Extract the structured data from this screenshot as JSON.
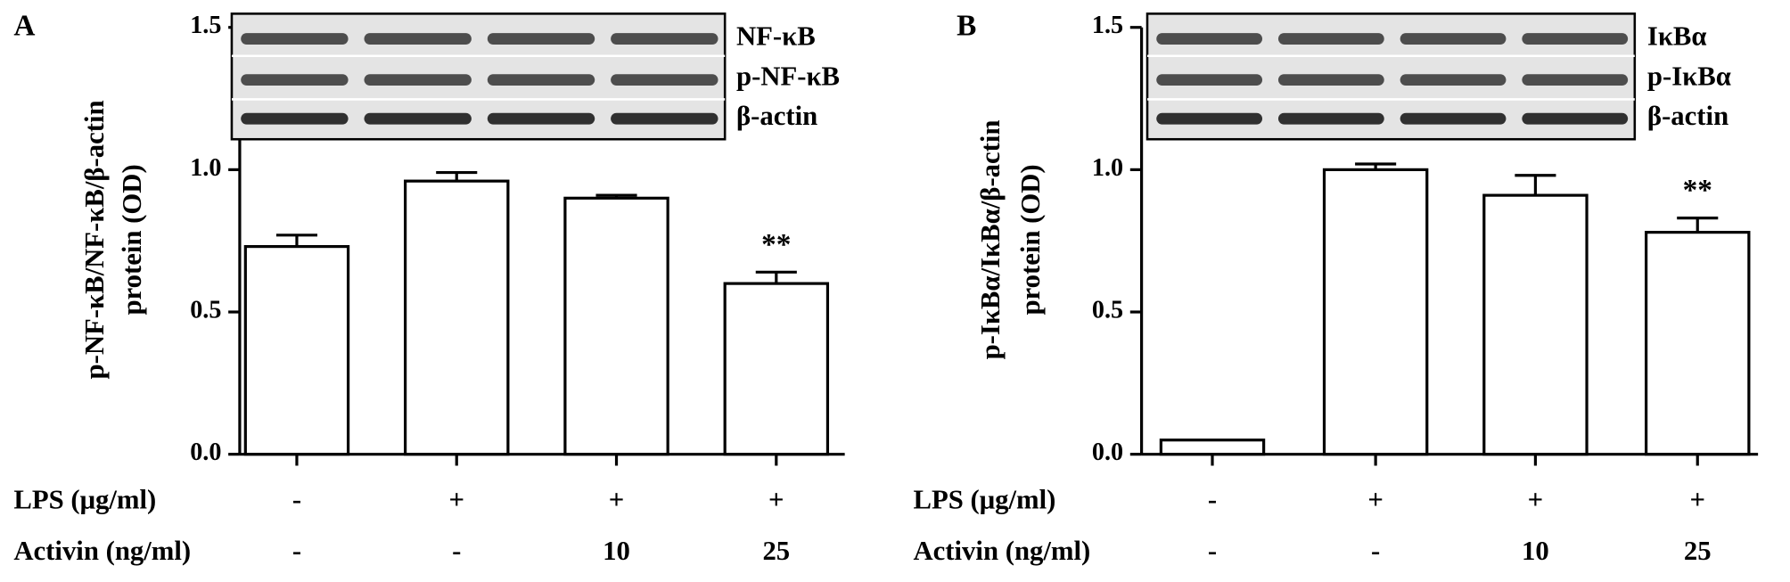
{
  "chart_data": [
    {
      "type": "bar",
      "panel": "A",
      "ylabel": [
        "p-NF-κB/NF-κB/β-actin",
        "protein (OD)"
      ],
      "values": [
        0.73,
        0.96,
        0.9,
        0.6
      ],
      "errors": [
        0.04,
        0.03,
        0.01,
        0.04
      ],
      "annotations": [
        null,
        null,
        null,
        "**"
      ],
      "rows": [
        {
          "label": "LPS (μg/ml)",
          "values": [
            "-",
            "+",
            "+",
            "+"
          ]
        },
        {
          "label": "Activin (ng/ml)",
          "values": [
            "-",
            "-",
            "10",
            "25"
          ]
        }
      ],
      "blot_labels": [
        "NF-κB",
        "p-NF-κB",
        "β-actin"
      ],
      "color": "#ffffff",
      "ylim": [
        0,
        1.5
      ],
      "yticks": [
        {
          "value": 0,
          "label": "0.0"
        },
        {
          "value": 0.5,
          "label": "0.5"
        },
        {
          "value": 1,
          "label": "1.0"
        },
        {
          "value": 1.5,
          "label": "1.5"
        }
      ]
    },
    {
      "type": "bar",
      "panel": "B",
      "ylabel": [
        "p-IκBα/IκBα/β-actin",
        "protein (OD)"
      ],
      "values": [
        0.05,
        1.0,
        0.91,
        0.78
      ],
      "errors": [
        0,
        0.02,
        0.07,
        0.05
      ],
      "annotations": [
        null,
        null,
        null,
        "**"
      ],
      "rows": [
        {
          "label": "LPS (μg/ml)",
          "values": [
            "-",
            "+",
            "+",
            "+"
          ]
        },
        {
          "label": "Activin (ng/ml)",
          "values": [
            "-",
            "-",
            "10",
            "25"
          ]
        }
      ],
      "blot_labels": [
        "IκBα",
        "p-IκBα",
        "β-actin"
      ],
      "color": "#ffffff",
      "ylim": [
        0,
        1.5
      ],
      "yticks": [
        {
          "value": 0,
          "label": "0.0"
        },
        {
          "value": 0.5,
          "label": "0.5"
        },
        {
          "value": 1,
          "label": "1.0"
        },
        {
          "value": 1.5,
          "label": "1.5"
        }
      ]
    }
  ]
}
